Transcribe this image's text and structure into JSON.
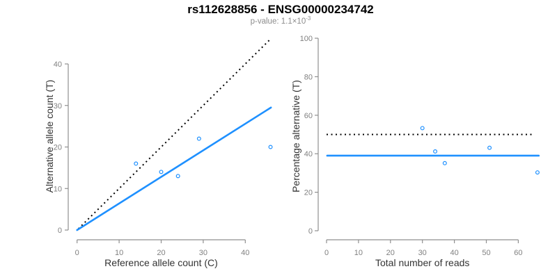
{
  "header": {
    "title": "rs112628856 - ENSG00000234742",
    "subtitle_base": "p-value: 1.1×10",
    "subtitle_exponent": "-3"
  },
  "colors": {
    "accent_blue": "#1E90FF",
    "dotted_black": "#000000",
    "axis_gray": "#8f8f8f",
    "tick_label_gray": "#808080",
    "axis_label_dark": "#333333",
    "subtitle_gray": "#8c8c8c",
    "title_black": "#000000"
  },
  "chart_data": [
    {
      "type": "scatter",
      "panel": "allele-counts",
      "title": "rs112628856 - ENSG00000234742",
      "subtitle": "p-value: 1.1×10^-3",
      "xlabel": "Reference allele count (C)",
      "ylabel": "Alternative allele count (T)",
      "xlim": [
        0,
        46
      ],
      "ylim": [
        0,
        46
      ],
      "xticks": [
        0,
        10,
        20,
        30,
        40
      ],
      "yticks": [
        0,
        10,
        20,
        30,
        40
      ],
      "grid": false,
      "points": {
        "x": [
          14,
          20,
          24,
          29,
          46
        ],
        "y": [
          16,
          14,
          13,
          22,
          20
        ]
      },
      "lines": [
        {
          "name": "identity-line",
          "style": "dotted",
          "color": "#000000",
          "from": [
            0.3,
            0.3
          ],
          "to": [
            45.9,
            45.9
          ]
        },
        {
          "name": "fit-line",
          "style": "solid",
          "color": "#1E90FF",
          "from": [
            0,
            0
          ],
          "to": [
            46.1,
            29.5
          ]
        }
      ]
    },
    {
      "type": "scatter",
      "panel": "percentage-alternative",
      "xlabel": "Total number of reads",
      "ylabel": "Percentage alternative (T)",
      "xlim": [
        0,
        66
      ],
      "ylim": [
        0,
        100
      ],
      "xticks": [
        0,
        10,
        20,
        30,
        40,
        50,
        60
      ],
      "yticks": [
        0,
        20,
        40,
        60,
        80,
        100
      ],
      "grid": false,
      "points": {
        "x": [
          30,
          34,
          37,
          51,
          66
        ],
        "y": [
          53.3,
          41.2,
          35.1,
          43.1,
          30.3
        ]
      },
      "lines": [
        {
          "name": "fifty-percent-line",
          "style": "dotted",
          "color": "#000000",
          "from": [
            0,
            50
          ],
          "to": [
            65,
            50
          ]
        },
        {
          "name": "mean-percentage-line",
          "style": "solid",
          "color": "#1E90FF",
          "from": [
            0.2,
            39
          ],
          "to": [
            66.4,
            39
          ]
        }
      ]
    }
  ]
}
